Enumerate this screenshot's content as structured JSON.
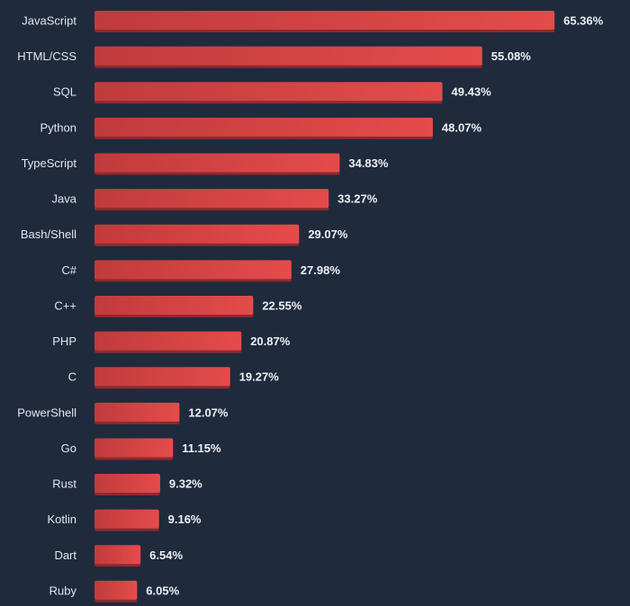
{
  "chart_data": {
    "type": "bar",
    "orientation": "horizontal",
    "categories": [
      "JavaScript",
      "HTML/CSS",
      "SQL",
      "Python",
      "TypeScript",
      "Java",
      "Bash/Shell",
      "C#",
      "C++",
      "PHP",
      "C",
      "PowerShell",
      "Go",
      "Rust",
      "Kotlin",
      "Dart",
      "Ruby"
    ],
    "values": [
      65.36,
      55.08,
      49.43,
      48.07,
      34.83,
      33.27,
      29.07,
      27.98,
      22.55,
      20.87,
      19.27,
      12.07,
      11.15,
      9.32,
      9.16,
      6.54,
      6.05
    ],
    "value_labels": [
      "65.36%",
      "55.08%",
      "49.43%",
      "48.07%",
      "34.83%",
      "33.27%",
      "29.07%",
      "27.98%",
      "22.55%",
      "20.87%",
      "19.27%",
      "12.07%",
      "11.15%",
      "9.32%",
      "9.16%",
      "6.54%",
      "6.05%"
    ],
    "unit": "%",
    "grid": false,
    "colors": {
      "background": "#1f2a3d",
      "bar_left": "#c03b3c",
      "bar_right": "#e54b4b",
      "bar_shadow": "#8e2a2d",
      "text": "#e3e7ee"
    }
  }
}
